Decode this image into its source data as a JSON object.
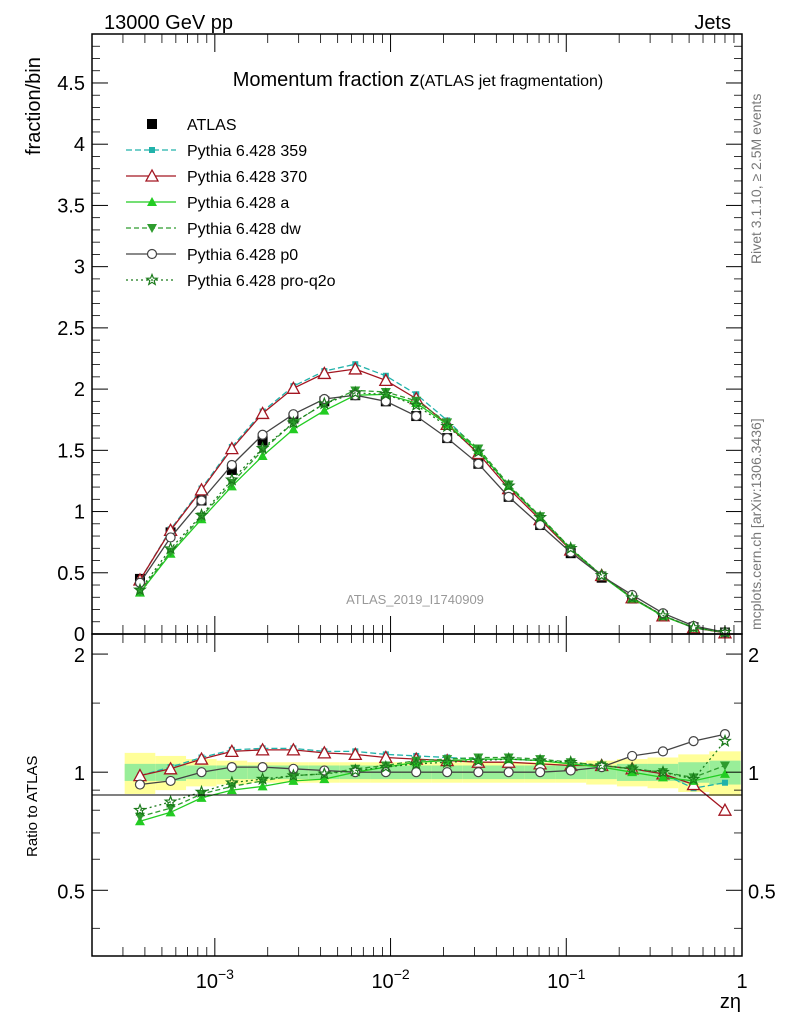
{
  "header": {
    "energy": "13000 GeV pp",
    "category": "Jets",
    "title_main": "Momentum fraction z",
    "title_sub": "(ATLAS jet fragmentation)",
    "side_rivet": "Rivet 3.1.10, ≥ 2.5M events",
    "side_url": "mcplots.cern.ch [arXiv:1306.3436]",
    "analysis_id": "ATLAS_2019_I1740909"
  },
  "chart_data": {
    "type": "line",
    "x_scale": "log",
    "xlabel": "zη",
    "ylabel": "fraction/bin",
    "ratio_ylabel": "Ratio to ATLAS",
    "xlim": [
      0.0002,
      1
    ],
    "ylim": [
      0,
      4.9
    ],
    "ratio_ylim": [
      0.34,
      2.25
    ],
    "x_ticks": [
      {
        "v": 0.001,
        "base": "10",
        "exp": "−3"
      },
      {
        "v": 0.01,
        "base": "10",
        "exp": "−2"
      },
      {
        "v": 0.1,
        "base": "10",
        "exp": "−1"
      },
      {
        "v": 1,
        "base": "1",
        "exp": ""
      }
    ],
    "y_ticks": [
      "0",
      "0.5",
      "1",
      "1.5",
      "2",
      "2.5",
      "3",
      "3.5",
      "4",
      "4.5"
    ],
    "ratio_ticks": [
      "0.5",
      "1",
      "2"
    ],
    "x": [
      0.000375,
      0.00056,
      0.00084,
      0.00125,
      0.00187,
      0.0028,
      0.0042,
      0.0063,
      0.0094,
      0.014,
      0.021,
      0.0316,
      0.047,
      0.071,
      0.106,
      0.159,
      0.237,
      0.355,
      0.53,
      0.8
    ],
    "atlas": [
      0.45,
      0.83,
      1.09,
      1.34,
      1.58,
      1.76,
      1.9,
      1.95,
      1.9,
      1.78,
      1.6,
      1.39,
      1.12,
      0.89,
      0.66,
      0.46,
      0.29,
      0.15,
      0.055,
      0.012
    ],
    "band_inner": [
      0.05,
      0.05,
      0.04,
      0.04,
      0.04,
      0.04,
      0.04,
      0.04,
      0.04,
      0.04,
      0.04,
      0.04,
      0.04,
      0.04,
      0.04,
      0.04,
      0.05,
      0.05,
      0.06,
      0.07
    ],
    "band_outer": [
      0.12,
      0.1,
      0.08,
      0.07,
      0.06,
      0.06,
      0.06,
      0.06,
      0.06,
      0.06,
      0.06,
      0.06,
      0.06,
      0.06,
      0.06,
      0.07,
      0.08,
      0.09,
      0.11,
      0.13
    ],
    "series": [
      {
        "name": "ATLAS",
        "key": "atlas",
        "color": "#000000",
        "marker": "square",
        "dash": "none",
        "ratio": [
          1,
          1,
          1,
          1,
          1,
          1,
          1,
          1,
          1,
          1,
          1,
          1,
          1,
          1,
          1,
          1,
          1,
          1,
          1,
          1
        ]
      },
      {
        "name": "Pythia 6.428 359",
        "key": "p359",
        "color": "#20b2aa",
        "marker": "smallsquare",
        "dash": "6,3",
        "ratio": [
          0.98,
          1.03,
          1.09,
          1.14,
          1.15,
          1.15,
          1.13,
          1.13,
          1.11,
          1.1,
          1.09,
          1.08,
          1.08,
          1.07,
          1.05,
          1.04,
          1.02,
          0.99,
          0.91,
          0.94
        ]
      },
      {
        "name": "Pythia 6.428 370",
        "key": "p370",
        "color": "#a31621",
        "marker": "opentriangle",
        "dash": "none",
        "ratio": [
          0.98,
          1.02,
          1.08,
          1.13,
          1.14,
          1.14,
          1.12,
          1.11,
          1.09,
          1.08,
          1.07,
          1.06,
          1.06,
          1.05,
          1.04,
          1.04,
          1.02,
          0.99,
          0.93,
          0.8
        ]
      },
      {
        "name": "Pythia 6.428 a",
        "key": "pa",
        "color": "#22cc22",
        "marker": "triangle",
        "dash": "none",
        "ratio": [
          0.75,
          0.79,
          0.86,
          0.9,
          0.92,
          0.95,
          0.96,
          1.0,
          1.03,
          1.06,
          1.07,
          1.08,
          1.08,
          1.07,
          1.05,
          1.03,
          1.0,
          0.97,
          0.95,
          0.99
        ]
      },
      {
        "name": "Pythia 6.428 dw",
        "key": "pdw",
        "color": "#2e9c2e",
        "marker": "invtriangle",
        "dash": "5,3",
        "ratio": [
          0.77,
          0.81,
          0.88,
          0.92,
          0.95,
          0.98,
          0.99,
          1.02,
          1.04,
          1.07,
          1.08,
          1.09,
          1.09,
          1.08,
          1.06,
          1.04,
          1.02,
          1.0,
          0.97,
          1.04
        ]
      },
      {
        "name": "Pythia 6.428 p0",
        "key": "pp0",
        "color": "#444444",
        "marker": "opencircle",
        "dash": "none",
        "ratio": [
          0.93,
          0.95,
          1.0,
          1.03,
          1.03,
          1.02,
          1.01,
          1.0,
          1.0,
          1.0,
          1.0,
          1.0,
          1.0,
          1.0,
          1.01,
          1.03,
          1.1,
          1.13,
          1.2,
          1.25
        ]
      },
      {
        "name": "Pythia 6.428 pro-q2o",
        "key": "pq2o",
        "color": "#1a7a1a",
        "marker": "star",
        "dash": "2,3",
        "ratio": [
          0.8,
          0.84,
          0.89,
          0.94,
          0.96,
          0.98,
          0.99,
          1.01,
          1.03,
          1.05,
          1.06,
          1.07,
          1.08,
          1.07,
          1.06,
          1.04,
          1.02,
          1.0,
          0.96,
          1.2
        ]
      }
    ]
  }
}
